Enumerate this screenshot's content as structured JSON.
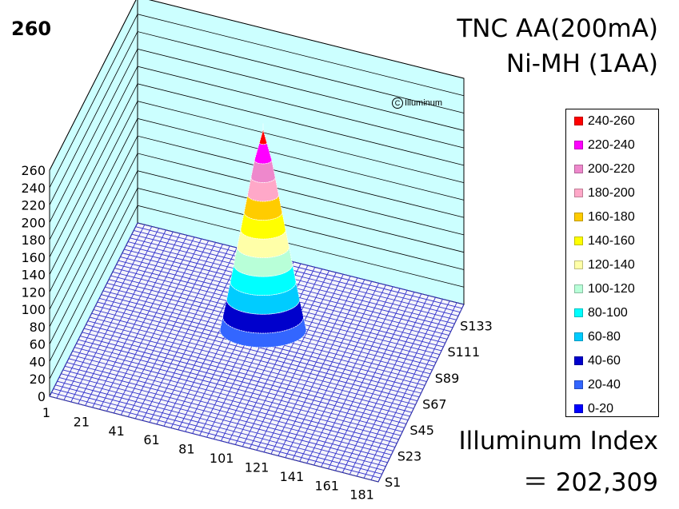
{
  "header": {
    "peak_label": "260",
    "title_line1": "TNC AA(200mA)",
    "title_line2": "Ni-MH (1AA)",
    "watermark": "Illuminum"
  },
  "footer": {
    "index_label": "Illuminum Index",
    "index_value": "＝ 202,309"
  },
  "chart_data": {
    "type": "surface3d",
    "title": "TNC AA(200mA)",
    "subtitle": "Ni-MH (1AA)",
    "zlim": [
      0,
      260
    ],
    "z_ticks": [
      "0",
      "20",
      "40",
      "60",
      "80",
      "100",
      "120",
      "140",
      "160",
      "180",
      "200",
      "220",
      "240",
      "260"
    ],
    "x_ticks": [
      "1",
      "21",
      "41",
      "61",
      "81",
      "101",
      "121",
      "141",
      "161",
      "181"
    ],
    "y_ticks": [
      "S1",
      "S23",
      "S45",
      "S67",
      "S89",
      "S111",
      "S133"
    ],
    "peak_value": 260,
    "beam_profile": [
      {
        "radius_fraction": 0.0,
        "value": 255
      },
      {
        "radius_fraction": 0.2,
        "value": 220
      },
      {
        "radius_fraction": 0.4,
        "value": 170
      },
      {
        "radius_fraction": 0.6,
        "value": 120
      },
      {
        "radius_fraction": 0.8,
        "value": 70
      },
      {
        "radius_fraction": 1.0,
        "value": 25
      }
    ],
    "legend": [
      {
        "label": "240-260",
        "color": "#ff0000"
      },
      {
        "label": "220-240",
        "color": "#ff00ff"
      },
      {
        "label": "200-220",
        "color": "#ee88cc"
      },
      {
        "label": "180-200",
        "color": "#ffa8c8"
      },
      {
        "label": "160-180",
        "color": "#ffcc00"
      },
      {
        "label": "140-160",
        "color": "#ffff00"
      },
      {
        "label": "120-140",
        "color": "#ffffa8"
      },
      {
        "label": "100-120",
        "color": "#b8ffd8"
      },
      {
        "label": "80-100",
        "color": "#00ffff"
      },
      {
        "label": "60-80",
        "color": "#00ccff"
      },
      {
        "label": "40-60",
        "color": "#0000cc"
      },
      {
        "label": "20-40",
        "color": "#3366ff"
      },
      {
        "label": "0-20",
        "color": "#0000ff"
      }
    ],
    "legend_placement": "right",
    "wall_color": "#ccffff",
    "floor_color": "#3333cc",
    "grid": true
  }
}
